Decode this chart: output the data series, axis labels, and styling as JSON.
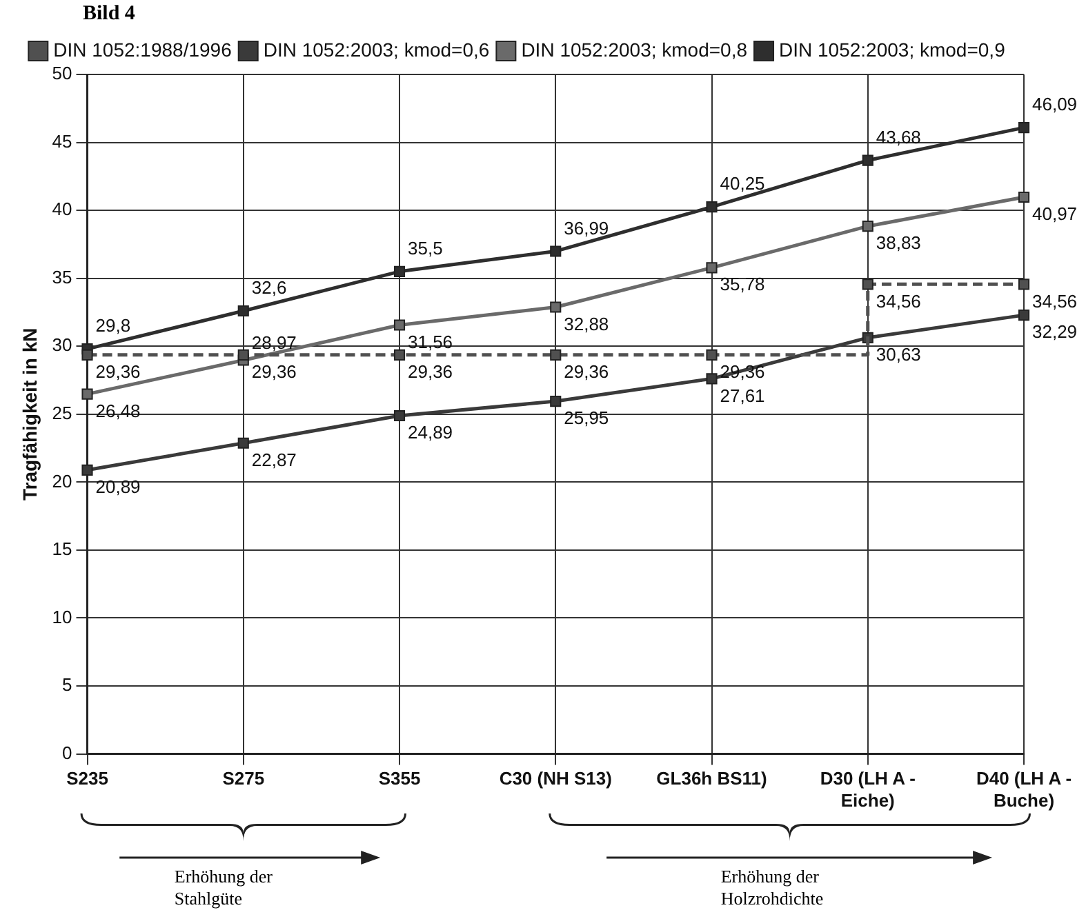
{
  "chart_data": {
    "type": "line",
    "title": "Bild 4",
    "ylabel": "Tragfähigkeit in kN",
    "categories": [
      "S235",
      "S275",
      "S355",
      "C30 (NH S13)",
      "GL36h BS11)",
      "D30 (LH A - Eiche)",
      "D40 (LH A - Buche)"
    ],
    "series": [
      {
        "name": "DIN 1052:1988/1996",
        "type": "step",
        "line_style": "dashed",
        "color": "#505050",
        "values": [
          29.36,
          29.36,
          29.36,
          29.36,
          29.36,
          34.56,
          34.56
        ],
        "value_labels": [
          "29,36",
          "29,36",
          "29,36",
          "29,36",
          "29,36",
          "34,56",
          "34,56"
        ]
      },
      {
        "name": "DIN 1052:2003; kmod=0,6",
        "color": "#3a3a3a",
        "values": [
          20.89,
          22.87,
          24.89,
          25.95,
          27.61,
          30.63,
          32.29
        ],
        "value_labels": [
          "20,89",
          "22,87",
          "24,89",
          "25,95",
          "27,61",
          "30,63",
          "32,29"
        ]
      },
      {
        "name": "DIN 1052:2003; kmod=0,8",
        "color": "#6a6a6a",
        "values": [
          26.48,
          28.97,
          31.56,
          32.88,
          35.78,
          38.83,
          40.97
        ],
        "value_labels": [
          "26,48",
          "28,97",
          "31,56",
          "32,88",
          "35,78",
          "38,83",
          "40,97"
        ]
      },
      {
        "name": "DIN 1052:2003; kmod=0,9",
        "color": "#2e2e2e",
        "values": [
          29.8,
          32.6,
          35.5,
          36.99,
          40.25,
          43.68,
          46.09
        ],
        "value_labels": [
          "29,8",
          "32,6",
          "35,5",
          "36,99",
          "40,25",
          "43,68",
          "46,09"
        ]
      }
    ],
    "ylim": [
      0,
      50
    ],
    "yticks": [
      0,
      5,
      10,
      15,
      20,
      25,
      30,
      35,
      40,
      45,
      50
    ],
    "grid": true,
    "legend": "top",
    "marker": "square",
    "line_style": "solid",
    "annotations": [
      "Erhöhung der Stahlgüte",
      "Erhöhung der Holzrohdichte"
    ]
  }
}
